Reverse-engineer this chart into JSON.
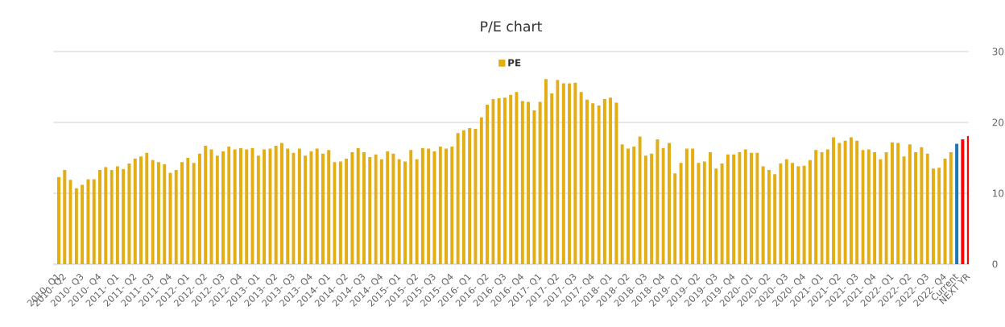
{
  "chart_data": {
    "type": "bar",
    "title": "P/E chart",
    "categories": [
      "2010- Q1",
      "2010- Q2",
      null,
      null,
      "2010- Q3",
      null,
      null,
      "2010- Q4",
      null,
      null,
      "2011- Q1",
      null,
      null,
      "2011- Q2",
      null,
      null,
      "2011- Q3",
      null,
      null,
      "2011- Q4",
      null,
      null,
      "2012- Q1",
      null,
      null,
      "2012- Q2",
      null,
      null,
      "2012- Q3",
      null,
      null,
      "2012- Q4",
      null,
      null,
      "2013- Q1",
      null,
      null,
      "2013- Q2",
      null,
      null,
      "2013- Q3",
      null,
      null,
      "2013- Q4",
      null,
      null,
      "2014- Q1",
      null,
      null,
      "2014- Q2",
      null,
      null,
      "2014- Q3",
      null,
      null,
      "2014- Q4",
      null,
      null,
      "2015- Q1",
      null,
      null,
      "2015- Q2",
      null,
      null,
      "2015- Q3",
      null,
      null,
      "2015- Q4",
      null,
      null,
      "2016- Q1",
      null,
      null,
      "2016- Q2",
      null,
      null,
      "2016- Q3",
      null,
      null,
      "2016- Q4",
      null,
      null,
      "2017- Q1",
      null,
      null,
      "2017- Q2",
      null,
      null,
      "2017- Q3",
      null,
      null,
      "2017- Q4",
      null,
      null,
      "2018- Q1",
      null,
      null,
      "2018- Q2",
      null,
      null,
      "2018- Q3",
      null,
      null,
      "2018- Q4",
      null,
      null,
      "2019- Q1",
      null,
      null,
      "2019- Q2",
      null,
      null,
      "2019- Q3",
      null,
      null,
      "2019- Q4",
      null,
      null,
      "2020- Q1",
      null,
      null,
      "2020- Q2",
      null,
      null,
      "2020- Q3",
      null,
      null,
      "2020- Q4",
      null,
      null,
      "2021- Q1",
      null,
      null,
      "2021- Q2",
      null,
      null,
      "2021- Q3",
      null,
      null,
      "2021- Q4",
      null,
      null,
      "2022- Q1",
      null,
      null,
      "2022- Q2",
      null,
      null,
      "2022- Q3",
      null,
      null,
      "2022- Q4",
      null,
      "Current",
      null,
      "NEXT YR"
    ],
    "series": [
      {
        "name": "PE",
        "values": [
          12.3,
          13.3,
          11.9,
          10.7,
          11.2,
          12.0,
          12.0,
          13.3,
          13.7,
          13.3,
          13.8,
          13.4,
          14.2,
          14.9,
          15.2,
          15.7,
          14.7,
          14.4,
          14.1,
          12.9,
          13.3,
          14.4,
          15.0,
          14.3,
          15.6,
          16.7,
          16.2,
          15.3,
          15.9,
          16.6,
          16.2,
          16.4,
          16.2,
          16.4,
          15.3,
          16.2,
          16.3,
          16.7,
          17.1,
          16.3,
          15.7,
          16.3,
          15.3,
          15.9,
          16.3,
          15.6,
          16.1,
          14.4,
          14.5,
          14.9,
          15.8,
          16.4,
          15.8,
          15.1,
          15.5,
          14.8,
          15.9,
          15.6,
          14.8,
          14.5,
          16.1,
          14.8,
          16.4,
          16.3,
          15.9,
          16.6,
          16.3,
          16.6,
          18.5,
          18.9,
          19.2,
          19.1,
          20.7,
          22.5,
          23.3,
          23.4,
          23.5,
          23.9,
          24.3,
          23.0,
          22.9,
          21.7,
          22.9,
          26.1,
          24.1,
          26.0,
          25.5,
          25.5,
          25.6,
          24.3,
          23.2,
          22.7,
          22.4,
          23.3,
          23.5,
          22.8,
          16.9,
          16.3,
          16.6,
          18.0,
          15.3,
          15.6,
          17.6,
          16.4,
          17.1,
          12.8,
          14.3,
          16.3,
          16.3,
          14.3,
          14.5,
          15.8,
          13.5,
          14.2,
          15.5,
          15.5,
          15.8,
          16.2,
          15.7,
          15.7,
          13.8,
          13.3,
          12.7,
          14.2,
          14.8,
          14.3,
          13.8,
          13.9,
          14.7,
          16.1,
          15.8,
          16.2,
          17.9,
          17.1,
          17.4,
          17.9,
          17.4,
          16.1,
          16.2,
          15.8,
          14.8,
          15.8,
          17.2,
          17.1,
          15.2,
          16.9,
          15.8,
          16.5,
          15.6,
          13.5,
          13.6,
          14.9,
          15.8,
          17.0,
          17.6,
          18.1
        ]
      }
    ],
    "colors": [
      "#e3ad14",
      "#e3ad14",
      "#e3ad14",
      "#e3ad14",
      "#e3ad14",
      "#e3ad14",
      "#e3ad14",
      "#e3ad14",
      "#e3ad14",
      "#e3ad14",
      "#e3ad14",
      "#e3ad14",
      "#e3ad14",
      "#e3ad14",
      "#e3ad14",
      "#e3ad14",
      "#e3ad14",
      "#e3ad14",
      "#e3ad14",
      "#e3ad14",
      "#e3ad14",
      "#e3ad14",
      "#e3ad14",
      "#e3ad14",
      "#e3ad14",
      "#e3ad14",
      "#e3ad14",
      "#e3ad14",
      "#e3ad14",
      "#e3ad14",
      "#e3ad14",
      "#e3ad14",
      "#e3ad14",
      "#e3ad14",
      "#e3ad14",
      "#e3ad14",
      "#e3ad14",
      "#e3ad14",
      "#e3ad14",
      "#e3ad14",
      "#e3ad14",
      "#e3ad14",
      "#e3ad14",
      "#e3ad14",
      "#e3ad14",
      "#e3ad14",
      "#e3ad14",
      "#e3ad14",
      "#e3ad14",
      "#e3ad14",
      "#e3ad14",
      "#e3ad14",
      "#e3ad14",
      "#e3ad14",
      "#e3ad14",
      "#e3ad14",
      "#e3ad14",
      "#e3ad14",
      "#e3ad14",
      "#e3ad14",
      "#e3ad14",
      "#e3ad14",
      "#e3ad14",
      "#e3ad14",
      "#e3ad14",
      "#e3ad14",
      "#e3ad14",
      "#e3ad14",
      "#e3ad14",
      "#e3ad14",
      "#e3ad14",
      "#e3ad14",
      "#e3ad14",
      "#e3ad14",
      "#e3ad14",
      "#e3ad14",
      "#e3ad14",
      "#e3ad14",
      "#e3ad14",
      "#e3ad14",
      "#e3ad14",
      "#e3ad14",
      "#e3ad14",
      "#e3ad14",
      "#e3ad14",
      "#e3ad14",
      "#e3ad14",
      "#e3ad14",
      "#e3ad14",
      "#e3ad14",
      "#e3ad14",
      "#e3ad14",
      "#e3ad14",
      "#e3ad14",
      "#e3ad14",
      "#e3ad14",
      "#e3ad14",
      "#e3ad14",
      "#e3ad14",
      "#e3ad14",
      "#e3ad14",
      "#e3ad14",
      "#e3ad14",
      "#e3ad14",
      "#e3ad14",
      "#e3ad14",
      "#e3ad14",
      "#e3ad14",
      "#e3ad14",
      "#e3ad14",
      "#e3ad14",
      "#e3ad14",
      "#e3ad14",
      "#e3ad14",
      "#e3ad14",
      "#e3ad14",
      "#e3ad14",
      "#e3ad14",
      "#e3ad14",
      "#e3ad14",
      "#e3ad14",
      "#e3ad14",
      "#e3ad14",
      "#e3ad14",
      "#e3ad14",
      "#e3ad14",
      "#e3ad14",
      "#e3ad14",
      "#e3ad14",
      "#e3ad14",
      "#e3ad14",
      "#e3ad14",
      "#e3ad14",
      "#e3ad14",
      "#e3ad14",
      "#e3ad14",
      "#e3ad14",
      "#e3ad14",
      "#e3ad14",
      "#e3ad14",
      "#e3ad14",
      "#e3ad14",
      "#e3ad14",
      "#e3ad14",
      "#e3ad14",
      "#e3ad14",
      "#e3ad14",
      "#e3ad14",
      "#e3ad14",
      "#e3ad14",
      "#e3ad14",
      "#e3ad14",
      "#e3ad14",
      "#1f77b4",
      "#ff0000",
      "#ff0000"
    ],
    "ylim": [
      0,
      30
    ],
    "yticks": [
      0,
      10,
      20,
      30
    ],
    "grid": "y",
    "legend": "top"
  }
}
